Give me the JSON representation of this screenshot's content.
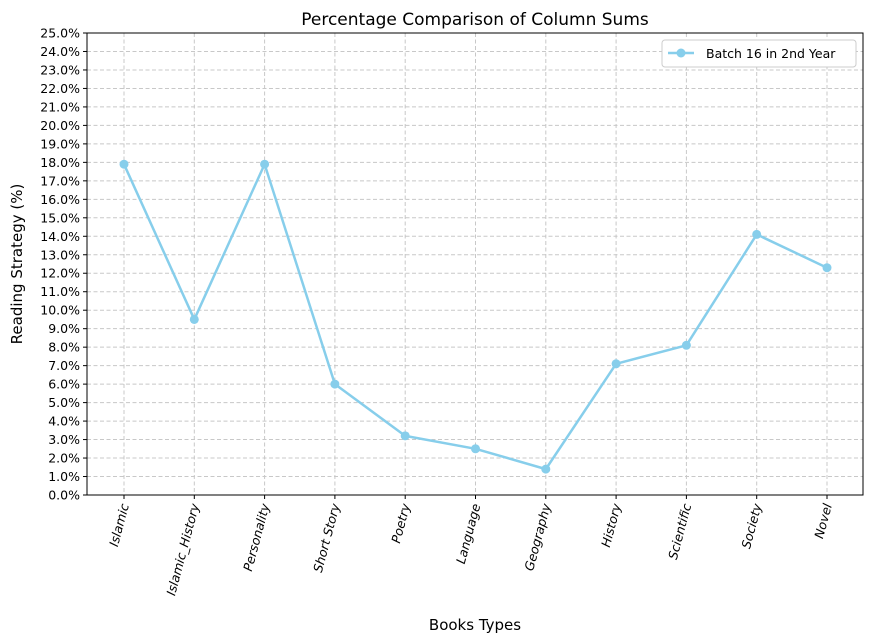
{
  "chart_data": {
    "type": "line",
    "title": "Percentage Comparison of Column Sums",
    "xlabel": "Books Types",
    "ylabel": "Reading Strategy (%)",
    "categories": [
      "Islamic",
      "Islamic_History",
      "Personality",
      "Short Story",
      "Poetry",
      "Language",
      "Geography",
      "History",
      "Scientific",
      "Society",
      "Novel"
    ],
    "series": [
      {
        "name": "Batch 16 in 2nd Year",
        "color": "#87ceeb",
        "marker": "circle",
        "values": [
          17.9,
          9.5,
          17.9,
          6.0,
          3.2,
          2.5,
          1.4,
          7.1,
          8.1,
          14.1,
          12.3
        ]
      }
    ],
    "ylim": [
      0,
      25
    ],
    "ytick_step": 1,
    "ytick_format": "percent_1dp",
    "xtick_rotation": 75,
    "grid": true,
    "grid_style": "dashed",
    "legend": "top-right"
  }
}
